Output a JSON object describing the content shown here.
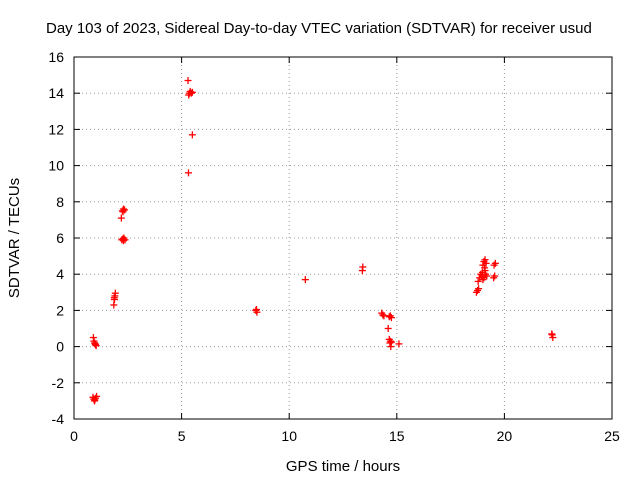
{
  "chart_data": {
    "type": "scatter",
    "title": "Day 103 of 2023, Sidereal Day-to-day VTEC variation (SDTVAR) for receiver usud",
    "xlabel": "GPS time / hours",
    "ylabel": "SDTVAR / TECUs",
    "xlim": [
      0,
      25
    ],
    "ylim": [
      -4,
      16
    ],
    "xticks": [
      0,
      5,
      10,
      15,
      20,
      25
    ],
    "yticks": [
      -4,
      -2,
      0,
      2,
      4,
      6,
      8,
      10,
      12,
      14,
      16
    ],
    "grid": true,
    "marker": "plus",
    "color": "#ff0000",
    "series": [
      {
        "name": "SDTVAR",
        "points": [
          [
            0.9,
            0.5
          ],
          [
            0.93,
            0.3
          ],
          [
            0.96,
            0.2
          ],
          [
            1.0,
            0.1
          ],
          [
            1.03,
            0.05
          ],
          [
            0.98,
            0.15
          ],
          [
            0.88,
            -2.8
          ],
          [
            0.92,
            -2.9
          ],
          [
            0.95,
            -3.0
          ],
          [
            1.0,
            -2.85
          ],
          [
            1.05,
            -2.75
          ],
          [
            0.97,
            -2.95
          ],
          [
            1.85,
            2.3
          ],
          [
            1.88,
            2.6
          ],
          [
            1.9,
            2.8
          ],
          [
            1.92,
            2.95
          ],
          [
            1.87,
            2.7
          ],
          [
            2.2,
            7.1
          ],
          [
            2.25,
            7.5
          ],
          [
            2.3,
            7.6
          ],
          [
            2.35,
            7.55
          ],
          [
            2.28,
            7.45
          ],
          [
            2.22,
            5.9
          ],
          [
            2.27,
            5.95
          ],
          [
            2.32,
            6.0
          ],
          [
            2.37,
            5.9
          ],
          [
            2.3,
            5.85
          ],
          [
            5.3,
            14.7
          ],
          [
            5.33,
            13.9
          ],
          [
            5.36,
            14.0
          ],
          [
            5.4,
            14.1
          ],
          [
            5.45,
            14.0
          ],
          [
            5.5,
            14.05
          ],
          [
            5.5,
            11.7
          ],
          [
            5.32,
            9.6
          ],
          [
            8.45,
            2.0
          ],
          [
            8.5,
            1.9
          ],
          [
            8.48,
            2.05
          ],
          [
            10.75,
            3.7
          ],
          [
            13.4,
            4.2
          ],
          [
            13.42,
            4.4
          ],
          [
            14.3,
            1.85
          ],
          [
            14.35,
            1.75
          ],
          [
            14.4,
            1.7
          ],
          [
            14.65,
            1.65
          ],
          [
            14.7,
            1.7
          ],
          [
            14.75,
            1.6
          ],
          [
            14.6,
            1.0
          ],
          [
            14.65,
            0.4
          ],
          [
            14.7,
            0.3
          ],
          [
            14.75,
            0.25
          ],
          [
            14.68,
            0.2
          ],
          [
            14.72,
            0.0
          ],
          [
            15.1,
            0.15
          ],
          [
            18.7,
            3.0
          ],
          [
            18.75,
            3.1
          ],
          [
            18.8,
            3.2
          ],
          [
            18.78,
            3.6
          ],
          [
            18.85,
            3.8
          ],
          [
            18.9,
            4.0
          ],
          [
            18.95,
            3.9
          ],
          [
            19.0,
            3.7
          ],
          [
            19.05,
            3.8
          ],
          [
            19.1,
            4.2
          ],
          [
            19.0,
            4.5
          ],
          [
            19.05,
            4.7
          ],
          [
            19.1,
            4.8
          ],
          [
            19.15,
            4.6
          ],
          [
            19.12,
            4.0
          ],
          [
            19.18,
            3.9
          ],
          [
            18.98,
            4.1
          ],
          [
            19.08,
            4.35
          ],
          [
            19.5,
            3.8
          ],
          [
            19.55,
            3.9
          ],
          [
            19.52,
            4.5
          ],
          [
            19.58,
            4.6
          ],
          [
            22.2,
            0.7
          ],
          [
            22.25,
            0.5
          ],
          [
            22.22,
            0.65
          ]
        ]
      }
    ]
  }
}
